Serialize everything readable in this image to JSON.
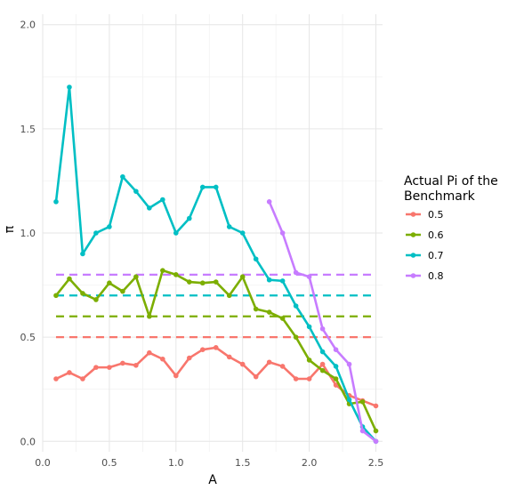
{
  "chart_data": {
    "type": "line",
    "xlabel": "A",
    "ylabel": "π",
    "xlim": [
      0.0,
      2.55
    ],
    "ylim": [
      -0.05,
      2.05
    ],
    "xticks": [
      "0.0",
      "0.5",
      "1.0",
      "1.5",
      "2.0",
      "2.5"
    ],
    "yticks": [
      "0.0",
      "0.5",
      "1.0",
      "1.5",
      "2.0"
    ],
    "grid": true,
    "legend": {
      "title_lines": [
        "Actual Pi of the",
        "Benchmark"
      ],
      "position": "right"
    },
    "series": [
      {
        "name": "0.5",
        "color": "#F8766D",
        "benchmark": 0.5,
        "points": [
          [
            0.1,
            0.3
          ],
          [
            0.2,
            0.33
          ],
          [
            0.3,
            0.3
          ],
          [
            0.4,
            0.355
          ],
          [
            0.5,
            0.355
          ],
          [
            0.6,
            0.375
          ],
          [
            0.7,
            0.365
          ],
          [
            0.8,
            0.425
          ],
          [
            0.9,
            0.395
          ],
          [
            1.0,
            0.315
          ],
          [
            1.1,
            0.4
          ],
          [
            1.2,
            0.44
          ],
          [
            1.3,
            0.45
          ],
          [
            1.4,
            0.405
          ],
          [
            1.5,
            0.37
          ],
          [
            1.6,
            0.31
          ],
          [
            1.7,
            0.38
          ],
          [
            1.8,
            0.36
          ],
          [
            1.9,
            0.3
          ],
          [
            2.0,
            0.3
          ],
          [
            2.1,
            0.37
          ],
          [
            2.2,
            0.27
          ],
          [
            2.3,
            0.22
          ],
          [
            2.4,
            0.195
          ],
          [
            2.5,
            0.17
          ]
        ]
      },
      {
        "name": "0.6",
        "color": "#7CAE00",
        "benchmark": 0.6,
        "points": [
          [
            0.1,
            0.7
          ],
          [
            0.2,
            0.78
          ],
          [
            0.3,
            0.71
          ],
          [
            0.4,
            0.68
          ],
          [
            0.5,
            0.76
          ],
          [
            0.6,
            0.72
          ],
          [
            0.7,
            0.79
          ],
          [
            0.8,
            0.6
          ],
          [
            0.9,
            0.82
          ],
          [
            1.0,
            0.8
          ],
          [
            1.1,
            0.765
          ],
          [
            1.2,
            0.76
          ],
          [
            1.3,
            0.765
          ],
          [
            1.4,
            0.7
          ],
          [
            1.5,
            0.79
          ],
          [
            1.6,
            0.635
          ],
          [
            1.7,
            0.62
          ],
          [
            1.8,
            0.59
          ],
          [
            1.9,
            0.5
          ],
          [
            2.0,
            0.39
          ],
          [
            2.1,
            0.34
          ],
          [
            2.2,
            0.3
          ],
          [
            2.3,
            0.18
          ],
          [
            2.4,
            0.19
          ],
          [
            2.5,
            0.05
          ]
        ]
      },
      {
        "name": "0.7",
        "color": "#00BFC4",
        "benchmark": 0.7,
        "points": [
          [
            0.1,
            1.15
          ],
          [
            0.2,
            1.7
          ],
          [
            0.3,
            0.9
          ],
          [
            0.4,
            1.0
          ],
          [
            0.5,
            1.03
          ],
          [
            0.6,
            1.27
          ],
          [
            0.7,
            1.2
          ],
          [
            0.8,
            1.12
          ],
          [
            0.9,
            1.16
          ],
          [
            1.0,
            1.0
          ],
          [
            1.1,
            1.07
          ],
          [
            1.2,
            1.22
          ],
          [
            1.3,
            1.22
          ],
          [
            1.4,
            1.03
          ],
          [
            1.5,
            1.0
          ],
          [
            1.6,
            0.875
          ],
          [
            1.7,
            0.775
          ],
          [
            1.8,
            0.77
          ],
          [
            1.9,
            0.65
          ],
          [
            2.0,
            0.55
          ],
          [
            2.1,
            0.43
          ],
          [
            2.2,
            0.36
          ],
          [
            2.3,
            0.2
          ],
          [
            2.4,
            0.07
          ],
          [
            2.5,
            0.0
          ]
        ]
      },
      {
        "name": "0.8",
        "color": "#C77CFF",
        "benchmark": 0.8,
        "points": [
          [
            1.7,
            1.15
          ],
          [
            1.8,
            1.0
          ],
          [
            1.9,
            0.81
          ],
          [
            2.0,
            0.79
          ],
          [
            2.1,
            0.54
          ],
          [
            2.2,
            0.44
          ],
          [
            2.3,
            0.37
          ],
          [
            2.4,
            0.05
          ],
          [
            2.5,
            0.0
          ]
        ]
      }
    ]
  }
}
